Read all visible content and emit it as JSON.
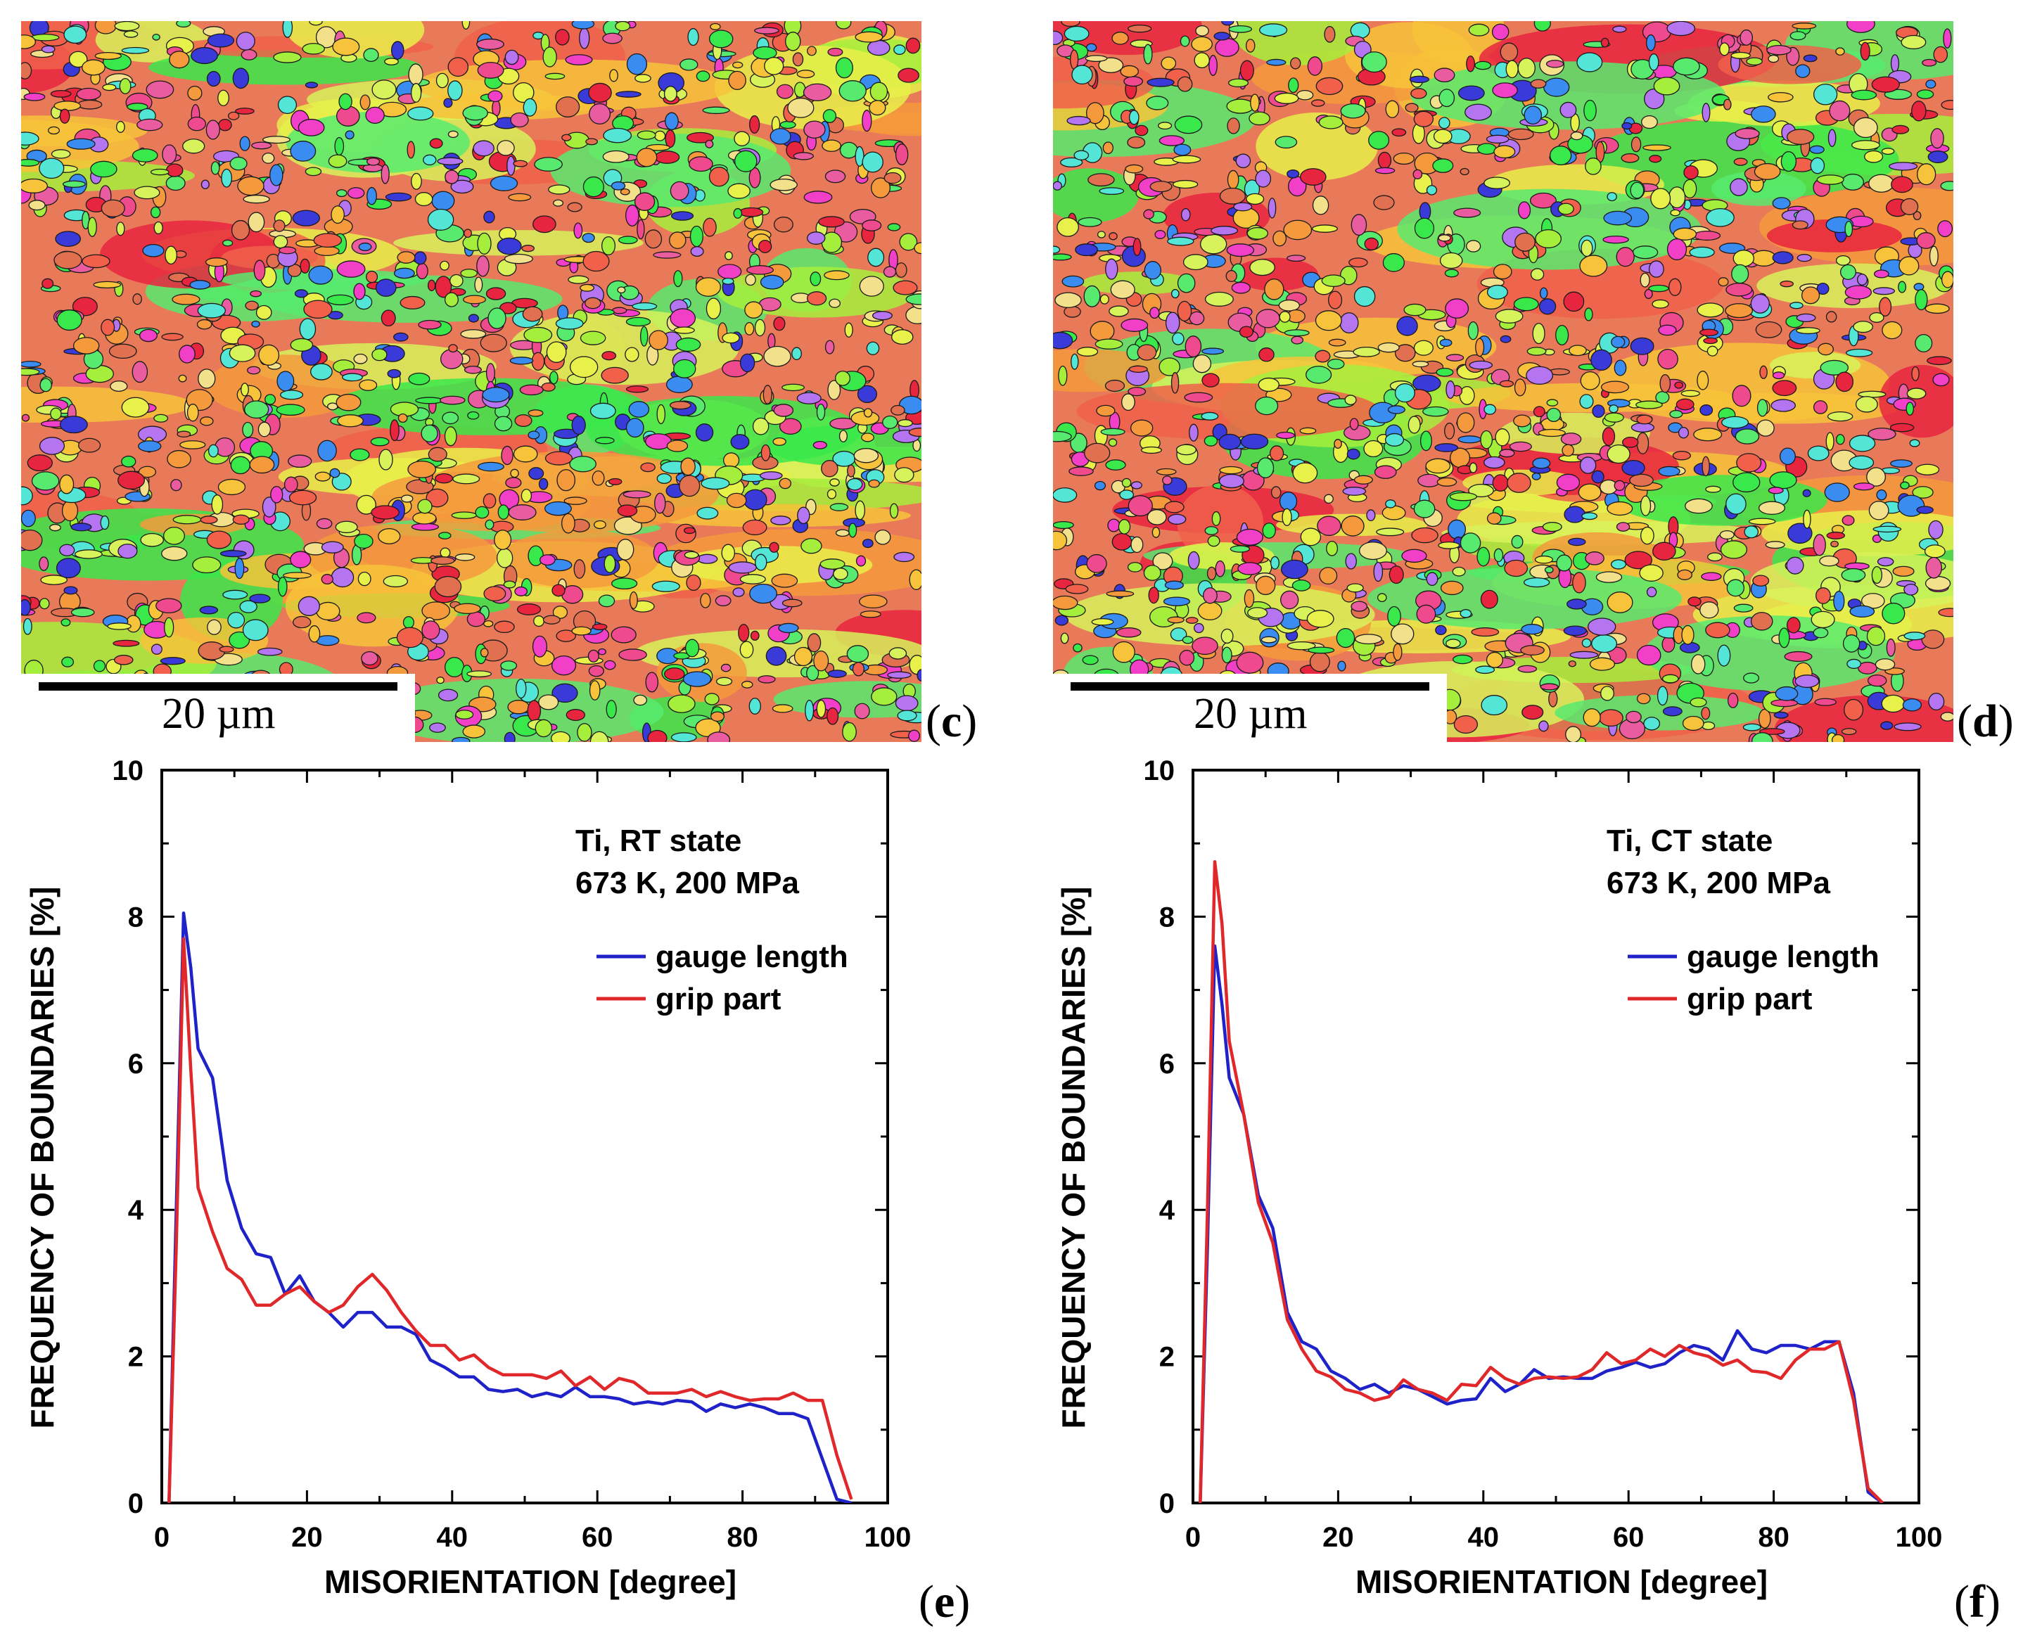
{
  "figure": {
    "panels": {
      "c": {
        "letter": "c",
        "scale_label": "20 µm"
      },
      "d": {
        "letter": "d",
        "scale_label": "20 µm"
      },
      "e": {
        "letter": "e"
      },
      "f": {
        "letter": "f"
      }
    },
    "map_colors": [
      "#e8253f",
      "#f0604a",
      "#f59a3c",
      "#f7c33a",
      "#e8f04a",
      "#d7f25a",
      "#a6ee3c",
      "#39e84a",
      "#58ea6e",
      "#f04a8e",
      "#f23fc8",
      "#e95ca0",
      "#3a8cf0",
      "#3a3ad8",
      "#b574f0",
      "#53e6d6",
      "#f2e08a",
      "#e07050"
    ]
  },
  "chart_data": [
    {
      "type": "line",
      "panel": "e",
      "title": "",
      "annotation": [
        "Ti, RT state",
        "673 K, 200 MPa"
      ],
      "xlabel": "MISORIENTATION [degree]",
      "ylabel": "FREQUENCY OF BOUNDARIES [%]",
      "xlim": [
        0,
        100
      ],
      "ylim": [
        0,
        10
      ],
      "xticks": [
        "0",
        "20",
        "40",
        "60",
        "80",
        "100"
      ],
      "yticks": [
        "0",
        "2",
        "4",
        "6",
        "8",
        "10"
      ],
      "legend_position": "upper-right",
      "series": [
        {
          "name": "gauge length",
          "color": "#1e22c8",
          "x": [
            1,
            2,
            3,
            4,
            5,
            7,
            9,
            11,
            13,
            15,
            17,
            19,
            21,
            23,
            25,
            27,
            29,
            31,
            33,
            35,
            37,
            39,
            41,
            43,
            45,
            47,
            49,
            51,
            53,
            55,
            57,
            59,
            61,
            63,
            65,
            67,
            69,
            71,
            73,
            75,
            77,
            79,
            81,
            83,
            85,
            87,
            89,
            91,
            93,
            95
          ],
          "values": [
            0.0,
            4.0,
            8.05,
            7.3,
            6.2,
            5.8,
            4.4,
            3.75,
            3.4,
            3.35,
            2.85,
            3.1,
            2.75,
            2.6,
            2.4,
            2.6,
            2.6,
            2.4,
            2.4,
            2.3,
            1.95,
            1.85,
            1.72,
            1.72,
            1.55,
            1.52,
            1.55,
            1.45,
            1.5,
            1.45,
            1.58,
            1.45,
            1.45,
            1.42,
            1.35,
            1.38,
            1.35,
            1.4,
            1.38,
            1.25,
            1.35,
            1.3,
            1.35,
            1.3,
            1.22,
            1.22,
            1.15,
            0.6,
            0.05,
            0.0
          ]
        },
        {
          "name": "grip part",
          "color": "#e0282a",
          "x": [
            1,
            2,
            3,
            4,
            5,
            7,
            9,
            11,
            13,
            15,
            17,
            19,
            21,
            23,
            25,
            27,
            29,
            31,
            33,
            35,
            37,
            39,
            41,
            43,
            45,
            47,
            49,
            51,
            53,
            55,
            57,
            59,
            61,
            63,
            65,
            67,
            69,
            71,
            73,
            75,
            77,
            79,
            81,
            83,
            85,
            87,
            89,
            91,
            93,
            95
          ],
          "values": [
            0.0,
            3.5,
            7.7,
            5.9,
            4.3,
            3.7,
            3.2,
            3.05,
            2.7,
            2.7,
            2.85,
            2.95,
            2.75,
            2.6,
            2.7,
            2.95,
            3.12,
            2.9,
            2.6,
            2.35,
            2.15,
            2.15,
            1.95,
            2.02,
            1.85,
            1.75,
            1.75,
            1.75,
            1.7,
            1.8,
            1.6,
            1.72,
            1.55,
            1.7,
            1.65,
            1.5,
            1.5,
            1.5,
            1.55,
            1.45,
            1.52,
            1.45,
            1.4,
            1.42,
            1.42,
            1.5,
            1.4,
            1.4,
            0.65,
            0.05
          ]
        }
      ]
    },
    {
      "type": "line",
      "panel": "f",
      "title": "",
      "annotation": [
        "Ti, CT state",
        "673 K, 200 MPa"
      ],
      "xlabel": "MISORIENTATION [degree]",
      "ylabel": "FREQUENCY OF BOUNDARIES [%]",
      "xlim": [
        0,
        100
      ],
      "ylim": [
        0,
        10
      ],
      "xticks": [
        "0",
        "20",
        "40",
        "60",
        "80",
        "100"
      ],
      "yticks": [
        "0",
        "2",
        "4",
        "6",
        "8",
        "10"
      ],
      "legend_position": "upper-right",
      "series": [
        {
          "name": "gauge length",
          "color": "#1e22c8",
          "x": [
            1,
            2,
            3,
            4,
            5,
            7,
            9,
            11,
            13,
            15,
            17,
            19,
            21,
            23,
            25,
            27,
            29,
            31,
            33,
            35,
            37,
            39,
            41,
            43,
            45,
            47,
            49,
            51,
            53,
            55,
            57,
            59,
            61,
            63,
            65,
            67,
            69,
            71,
            73,
            75,
            77,
            79,
            81,
            83,
            85,
            87,
            89,
            91,
            93,
            95
          ],
          "values": [
            0.0,
            3.5,
            7.6,
            6.8,
            5.8,
            5.3,
            4.2,
            3.75,
            2.6,
            2.2,
            2.1,
            1.8,
            1.7,
            1.55,
            1.62,
            1.5,
            1.6,
            1.55,
            1.45,
            1.35,
            1.4,
            1.42,
            1.7,
            1.52,
            1.62,
            1.82,
            1.7,
            1.72,
            1.7,
            1.7,
            1.8,
            1.85,
            1.92,
            1.85,
            1.9,
            2.05,
            2.15,
            2.1,
            1.95,
            2.35,
            2.1,
            2.05,
            2.15,
            2.15,
            2.1,
            2.2,
            2.2,
            1.5,
            0.15,
            0.0
          ]
        },
        {
          "name": "grip part",
          "color": "#e0282a",
          "x": [
            1,
            2,
            3,
            4,
            5,
            7,
            9,
            11,
            13,
            15,
            17,
            19,
            21,
            23,
            25,
            27,
            29,
            31,
            33,
            35,
            37,
            39,
            41,
            43,
            45,
            47,
            49,
            51,
            53,
            55,
            57,
            59,
            61,
            63,
            65,
            67,
            69,
            71,
            73,
            75,
            77,
            79,
            81,
            83,
            85,
            87,
            89,
            91,
            93,
            95
          ],
          "values": [
            0.0,
            4.0,
            8.75,
            7.9,
            6.3,
            5.3,
            4.1,
            3.55,
            2.5,
            2.1,
            1.8,
            1.72,
            1.55,
            1.5,
            1.4,
            1.45,
            1.68,
            1.55,
            1.5,
            1.4,
            1.62,
            1.6,
            1.85,
            1.7,
            1.62,
            1.7,
            1.72,
            1.7,
            1.72,
            1.82,
            2.05,
            1.9,
            1.95,
            2.1,
            2.0,
            2.15,
            2.05,
            2.0,
            1.88,
            1.95,
            1.8,
            1.78,
            1.7,
            1.95,
            2.1,
            2.1,
            2.2,
            1.4,
            0.2,
            0.0
          ]
        }
      ]
    }
  ]
}
